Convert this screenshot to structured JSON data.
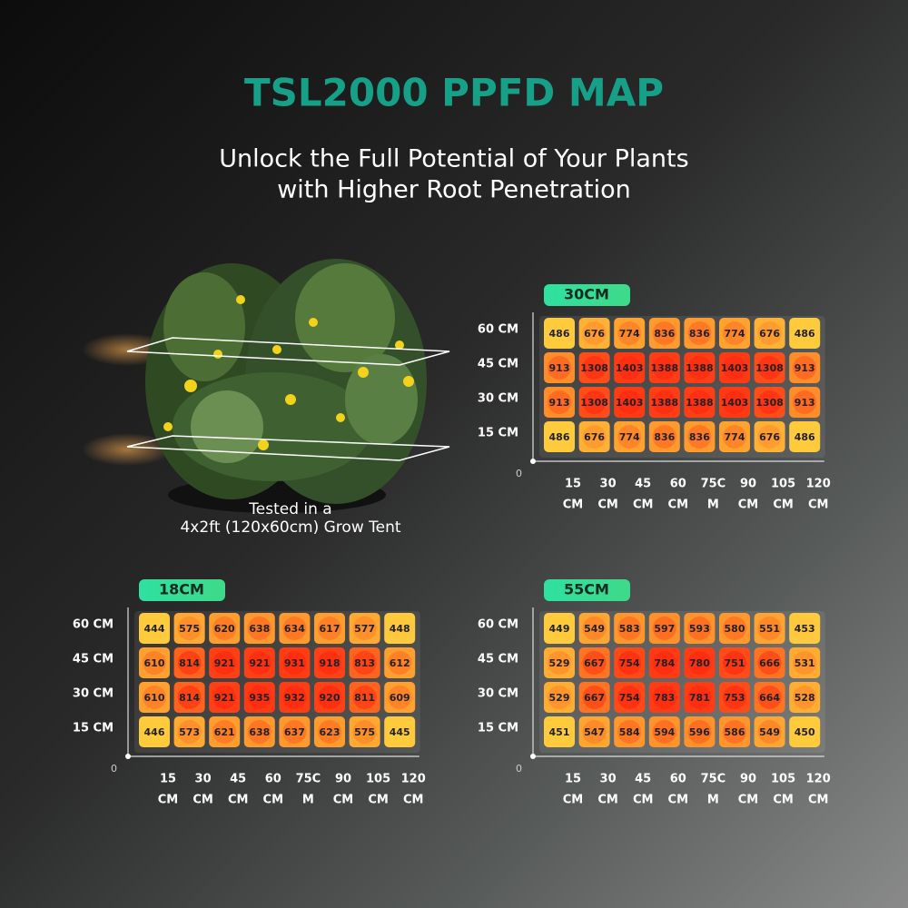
{
  "title": "TSL2000 PPFD MAP",
  "subtitle": [
    "Unlock the Full Potential of Your Plants",
    "with Higher Root Penetration"
  ],
  "caption": [
    "Tested in a",
    "4x2ft (120x60cm) Grow Tent"
  ],
  "maps": [
    {
      "label": "30CM",
      "y_labels": [
        "60 CM",
        "45 CM",
        "30 CM",
        "15 CM"
      ],
      "origin": "0",
      "x_labels": [
        [
          "15",
          "CM"
        ],
        [
          "30",
          "CM"
        ],
        [
          "45",
          "CM"
        ],
        [
          "60",
          "CM"
        ],
        [
          "75C",
          "M"
        ],
        [
          "90",
          "CM"
        ],
        [
          "105",
          "CM"
        ],
        [
          "120",
          "CM"
        ]
      ],
      "rows": [
        [
          486,
          676,
          774,
          836,
          836,
          774,
          676,
          486
        ],
        [
          913,
          1308,
          1403,
          1388,
          1388,
          1403,
          1308,
          913
        ],
        [
          913,
          1308,
          1403,
          1388,
          1388,
          1403,
          1308,
          913
        ],
        [
          486,
          676,
          774,
          836,
          836,
          774,
          676,
          486
        ]
      ]
    },
    {
      "label": "18CM",
      "y_labels": [
        "60 CM",
        "45 CM",
        "30 CM",
        "15 CM"
      ],
      "origin": "0",
      "x_labels": [
        [
          "15",
          "CM"
        ],
        [
          "30",
          "CM"
        ],
        [
          "45",
          "CM"
        ],
        [
          "60",
          "CM"
        ],
        [
          "75C",
          "M"
        ],
        [
          "90",
          "CM"
        ],
        [
          "105",
          "CM"
        ],
        [
          "120",
          "CM"
        ]
      ],
      "rows": [
        [
          444,
          575,
          620,
          638,
          634,
          617,
          577,
          448
        ],
        [
          610,
          814,
          921,
          921,
          931,
          918,
          813,
          612
        ],
        [
          610,
          814,
          921,
          935,
          932,
          920,
          811,
          609
        ],
        [
          446,
          573,
          621,
          638,
          637,
          623,
          575,
          445
        ]
      ]
    },
    {
      "label": "55CM",
      "y_labels": [
        "60 CM",
        "45 CM",
        "30 CM",
        "15 CM"
      ],
      "origin": "0",
      "x_labels": [
        [
          "15",
          "CM"
        ],
        [
          "30",
          "CM"
        ],
        [
          "45",
          "CM"
        ],
        [
          "60",
          "CM"
        ],
        [
          "75C",
          "M"
        ],
        [
          "90",
          "CM"
        ],
        [
          "105",
          "CM"
        ],
        [
          "120",
          "CM"
        ]
      ],
      "rows": [
        [
          449,
          549,
          583,
          597,
          593,
          580,
          551,
          453
        ],
        [
          529,
          667,
          754,
          784,
          780,
          751,
          666,
          531
        ],
        [
          529,
          667,
          754,
          783,
          781,
          753,
          664,
          528
        ],
        [
          451,
          547,
          584,
          594,
          596,
          586,
          549,
          450
        ]
      ]
    }
  ]
}
